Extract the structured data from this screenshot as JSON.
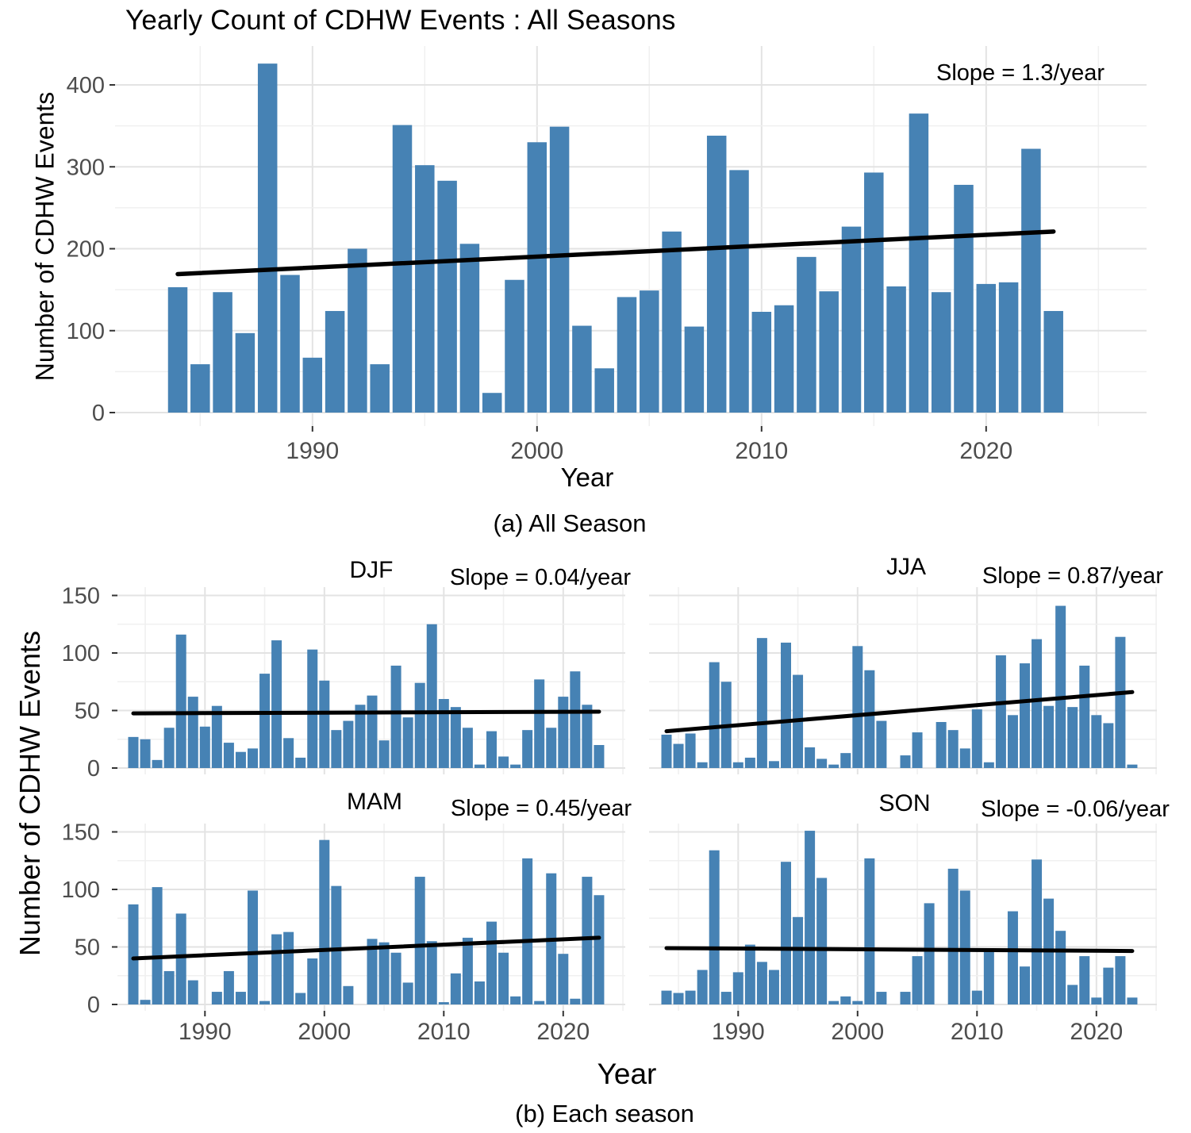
{
  "figure": {
    "title": "Yearly Count of CDHW Events : All Seasons",
    "captions": {
      "a": "(a) All Season",
      "b": "(b) Each season"
    },
    "axis": {
      "x_label_top": "Year",
      "x_label_bottom": "Year",
      "y_label_top": "Number of CDHW Events",
      "y_label_bottom": "Number of CDHW Events"
    },
    "colors": {
      "bar_fill": "#4682B4",
      "trend_line": "#000000",
      "grid_major": "#E3E3E3",
      "grid_minor": "#F0F0F0",
      "axis_tick_text": "#4D4D4D",
      "tick_mark": "#333333",
      "title_text": "#000000",
      "background": "#FFFFFF"
    }
  },
  "chart_data": [
    {
      "id": "all_seasons",
      "type": "bar",
      "title": "All Seasons",
      "slope_label": "Slope = 1.3/year",
      "xlabel": "Year",
      "ylabel": "Number of CDHW Events",
      "x_ticks": [
        1990,
        2000,
        2010,
        2020
      ],
      "y_ticks": [
        0,
        100,
        200,
        300,
        400
      ],
      "grid_step_minor_y": 50,
      "ylim": [
        0,
        447
      ],
      "years": [
        1984,
        1985,
        1986,
        1987,
        1988,
        1989,
        1990,
        1991,
        1992,
        1993,
        1994,
        1995,
        1996,
        1997,
        1998,
        1999,
        2000,
        2001,
        2002,
        2003,
        2004,
        2005,
        2006,
        2007,
        2008,
        2009,
        2010,
        2011,
        2012,
        2013,
        2014,
        2015,
        2016,
        2017,
        2018,
        2019,
        2020,
        2021,
        2022,
        2023
      ],
      "values": [
        153,
        59,
        147,
        97,
        426,
        168,
        67,
        124,
        200,
        59,
        351,
        302,
        283,
        206,
        24,
        162,
        330,
        349,
        106,
        54,
        141,
        149,
        221,
        105,
        338,
        296,
        123,
        131,
        190,
        148,
        227,
        293,
        154,
        365,
        147,
        278,
        157,
        159,
        322,
        124
      ],
      "trend": {
        "year_start": 1984,
        "value_start": 169,
        "year_end": 2023,
        "value_end": 221
      }
    },
    {
      "id": "djf",
      "type": "bar",
      "title": "DJF",
      "slope_label": "Slope = 0.04/year",
      "x_ticks": [
        1990,
        2000,
        2010,
        2020
      ],
      "y_ticks": [
        0,
        50,
        100,
        150
      ],
      "grid_step_minor_y": 25,
      "ylim": [
        0,
        157
      ],
      "years": [
        1984,
        1985,
        1986,
        1987,
        1988,
        1989,
        1990,
        1991,
        1992,
        1993,
        1994,
        1995,
        1996,
        1997,
        1998,
        1999,
        2000,
        2001,
        2002,
        2003,
        2004,
        2005,
        2006,
        2007,
        2008,
        2009,
        2010,
        2011,
        2012,
        2013,
        2014,
        2015,
        2016,
        2017,
        2018,
        2019,
        2020,
        2021,
        2022,
        2023
      ],
      "values": [
        27,
        25,
        7,
        35,
        116,
        62,
        36,
        54,
        22,
        14,
        17,
        82,
        111,
        26,
        9,
        103,
        76,
        33,
        41,
        55,
        63,
        24,
        89,
        44,
        74,
        125,
        60,
        53,
        35,
        3,
        32,
        10,
        3,
        33,
        77,
        35,
        62,
        84,
        55,
        20
      ],
      "trend": {
        "year_start": 1984,
        "value_start": 47.5,
        "year_end": 2023,
        "value_end": 49
      }
    },
    {
      "id": "jja",
      "type": "bar",
      "title": "JJA",
      "slope_label": "Slope = 0.87/year",
      "x_ticks": [
        1990,
        2000,
        2010,
        2020
      ],
      "y_ticks": [
        0,
        50,
        100,
        150
      ],
      "grid_step_minor_y": 25,
      "ylim": [
        0,
        157
      ],
      "years": [
        1984,
        1985,
        1986,
        1987,
        1988,
        1989,
        1990,
        1991,
        1992,
        1993,
        1994,
        1995,
        1996,
        1997,
        1998,
        1999,
        2000,
        2001,
        2002,
        2003,
        2004,
        2005,
        2006,
        2007,
        2008,
        2009,
        2010,
        2011,
        2012,
        2013,
        2014,
        2015,
        2016,
        2017,
        2018,
        2019,
        2020,
        2021,
        2022,
        2023
      ],
      "values": [
        29,
        21,
        30,
        5,
        92,
        75,
        5,
        9,
        113,
        6,
        109,
        81,
        18,
        8,
        3,
        13,
        106,
        85,
        41,
        0,
        11,
        31,
        0,
        40,
        33,
        17,
        51,
        5,
        98,
        46,
        91,
        112,
        54,
        141,
        53,
        89,
        46,
        39,
        114,
        3
      ],
      "trend": {
        "year_start": 1984,
        "value_start": 32,
        "year_end": 2023,
        "value_end": 66
      }
    },
    {
      "id": "mam",
      "type": "bar",
      "title": "MAM",
      "slope_label": "Slope = 0.45/year",
      "x_ticks": [
        1990,
        2000,
        2010,
        2020
      ],
      "y_ticks": [
        0,
        50,
        100,
        150
      ],
      "grid_step_minor_y": 25,
      "ylim": [
        0,
        157
      ],
      "years": [
        1984,
        1985,
        1986,
        1987,
        1988,
        1989,
        1990,
        1991,
        1992,
        1993,
        1994,
        1995,
        1996,
        1997,
        1998,
        1999,
        2000,
        2001,
        2002,
        2003,
        2004,
        2005,
        2006,
        2007,
        2008,
        2009,
        2010,
        2011,
        2012,
        2013,
        2014,
        2015,
        2016,
        2017,
        2018,
        2019,
        2020,
        2021,
        2022,
        2023
      ],
      "values": [
        87,
        4,
        102,
        29,
        79,
        21,
        0,
        11,
        29,
        11,
        99,
        3,
        61,
        63,
        10,
        40,
        143,
        103,
        16,
        0,
        57,
        54,
        45,
        19,
        111,
        55,
        2,
        27,
        58,
        20,
        72,
        45,
        7,
        127,
        3,
        114,
        44,
        5,
        111,
        95
      ],
      "trend": {
        "year_start": 1984,
        "value_start": 40,
        "year_end": 2023,
        "value_end": 58
      }
    },
    {
      "id": "son",
      "type": "bar",
      "title": "SON",
      "slope_label": "Slope = -0.06/year",
      "x_ticks": [
        1990,
        2000,
        2010,
        2020
      ],
      "y_ticks": [
        0,
        50,
        100,
        150
      ],
      "grid_step_minor_y": 25,
      "ylim": [
        0,
        157
      ],
      "years": [
        1984,
        1985,
        1986,
        1987,
        1988,
        1989,
        1990,
        1991,
        1992,
        1993,
        1994,
        1995,
        1996,
        1997,
        1998,
        1999,
        2000,
        2001,
        2002,
        2003,
        2004,
        2005,
        2006,
        2007,
        2008,
        2009,
        2010,
        2011,
        2012,
        2013,
        2014,
        2015,
        2016,
        2017,
        2018,
        2019,
        2020,
        2021,
        2022,
        2023
      ],
      "values": [
        12,
        10,
        12,
        30,
        134,
        11,
        28,
        52,
        37,
        30,
        124,
        76,
        151,
        110,
        3,
        7,
        3,
        127,
        11,
        0,
        11,
        42,
        88,
        0,
        118,
        99,
        12,
        46,
        0,
        81,
        33,
        126,
        92,
        64,
        17,
        42,
        6,
        32,
        42,
        6
      ],
      "trend": {
        "year_start": 1984,
        "value_start": 49,
        "year_end": 2023,
        "value_end": 46.5
      }
    }
  ]
}
